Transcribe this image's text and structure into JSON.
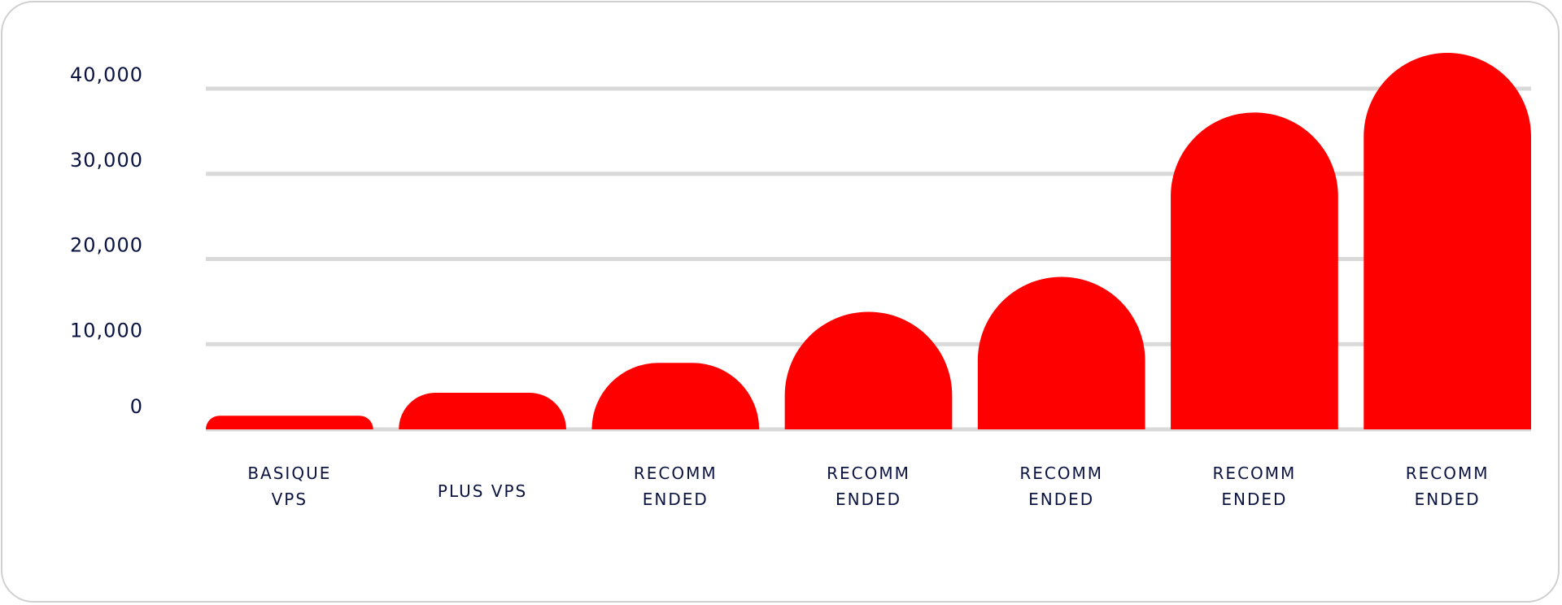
{
  "chart_data": {
    "type": "bar",
    "title": "",
    "xlabel": "",
    "ylabel": "",
    "categories": [
      "BASIQUE VPS",
      "PLUS VPS",
      "RECOMM ENDED",
      "RECOMM ENDED",
      "RECOMM ENDED",
      "RECOMM ENDED",
      "RECOMM ENDED"
    ],
    "values": [
      1600,
      4300,
      7800,
      13800,
      17900,
      37200,
      44200
    ],
    "ylim": [
      0,
      40000
    ],
    "yticks": [
      0,
      10000,
      20000,
      30000,
      40000
    ],
    "ytick_labels": [
      "0",
      "10,000",
      "20,000",
      "30,000",
      "40,000"
    ],
    "grid": true,
    "bar_color": "#ff0000",
    "grid_color": "#d9d9d9",
    "text_color": "#0b1340"
  }
}
